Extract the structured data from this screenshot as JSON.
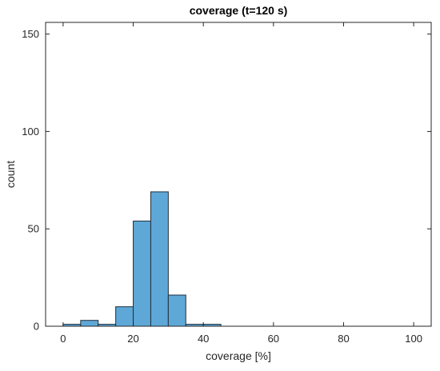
{
  "chart_data": {
    "type": "bar",
    "title": "coverage (t=120 s)",
    "xlabel": "coverage [%]",
    "ylabel": "count",
    "xlim": [
      -5,
      105
    ],
    "ylim": [
      0,
      156
    ],
    "xticks": [
      0,
      20,
      40,
      60,
      80,
      100
    ],
    "yticks": [
      0,
      50,
      100,
      150
    ],
    "bin_width": 5,
    "bins": [
      {
        "start": 0,
        "count": 1
      },
      {
        "start": 5,
        "count": 3
      },
      {
        "start": 10,
        "count": 1
      },
      {
        "start": 15,
        "count": 10
      },
      {
        "start": 20,
        "count": 54
      },
      {
        "start": 25,
        "count": 69
      },
      {
        "start": 30,
        "count": 16
      },
      {
        "start": 35,
        "count": 1
      },
      {
        "start": 40,
        "count": 1
      }
    ],
    "grid": false,
    "bar_color": "#5ea8d8",
    "edge_color": "#1f2f3d"
  }
}
